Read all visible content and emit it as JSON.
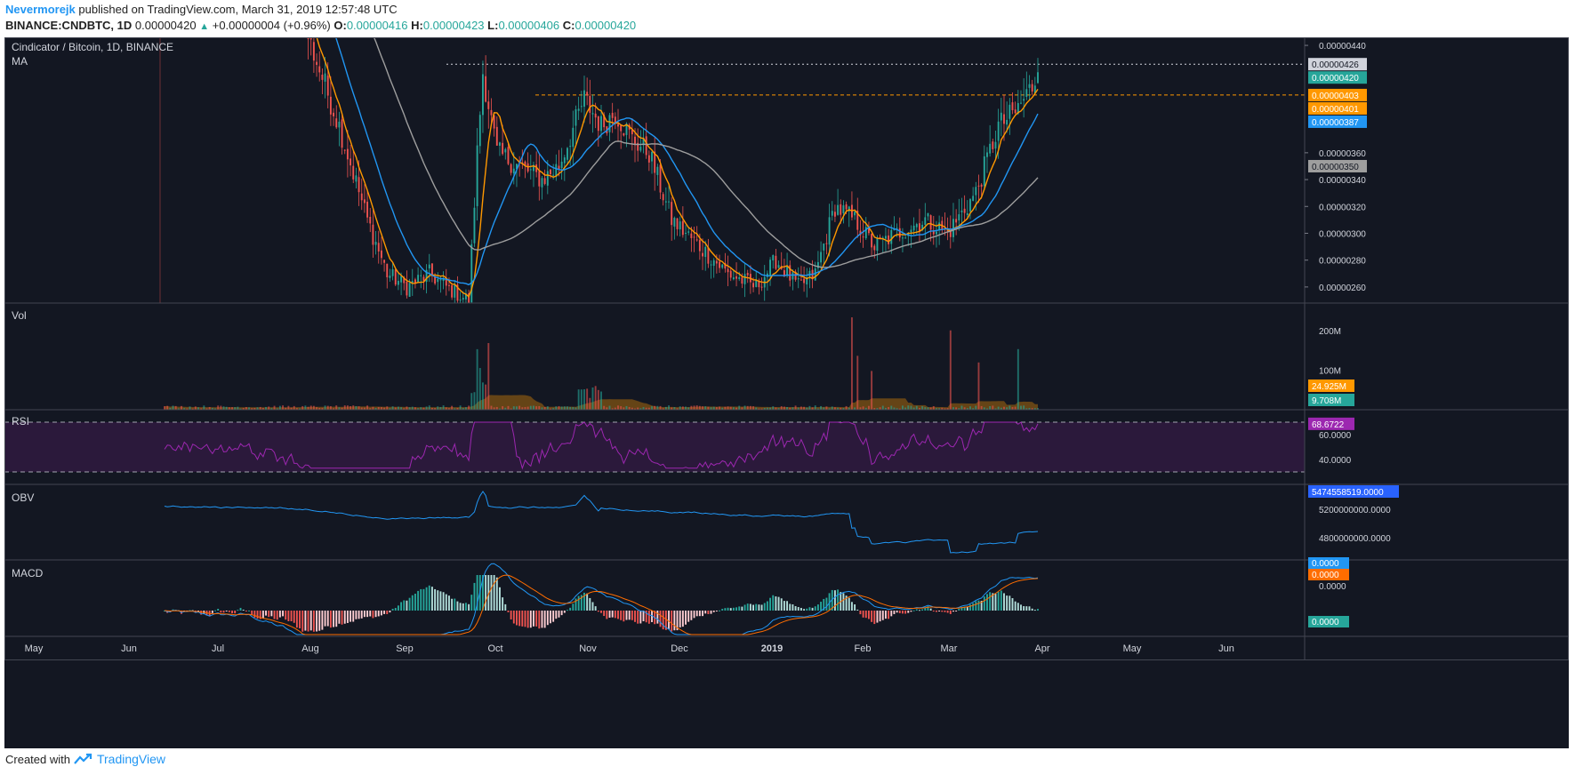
{
  "header": {
    "author": "Nevermorejk",
    "published": "published on TradingView.com, March 31, 2019 12:57:48 UTC",
    "symbol": "BINANCE:CNDBTC, 1D",
    "last": "0.00000420",
    "change": "+0.00000004 (+0.96%)",
    "o_label": "O:",
    "o": "0.00000416",
    "h_label": "H:",
    "h": "0.00000423",
    "l_label": "L:",
    "l": "0.00000406",
    "c_label": "C:",
    "c": "0.00000420"
  },
  "footer": {
    "created_with": "Created with",
    "brand": "TradingView"
  },
  "chart_data": {
    "type": "candlestick",
    "title": "Cindicator / Bitcoin, 1D, BINANCE",
    "indicator_label": "MA",
    "colors": {
      "bg": "#131722",
      "up": "#26a69a",
      "down": "#ef5350",
      "ma_fast": "#ff9800",
      "ma_mid": "#2196f3",
      "ma_slow": "#9e9e9e",
      "rsi": "#9c27b0",
      "obv": "#2196f3",
      "macd": "#2196f3",
      "signal": "#ff6d00"
    },
    "x_ticks": [
      "May",
      "Jun",
      "Jul",
      "Aug",
      "Sep",
      "Oct",
      "Nov",
      "Dec",
      "2019",
      "Feb",
      "Mar",
      "Apr",
      "May",
      "Jun"
    ],
    "price_axis": {
      "ticks": [
        "0.00000440",
        "0.00000360",
        "0.00000340",
        "0.00000320",
        "0.00000300",
        "0.00000280",
        "0.00000260"
      ],
      "labels": [
        {
          "value": "0.00000426",
          "color": "#d1d4dc"
        },
        {
          "value": "0.00000420",
          "color": "#26a69a"
        },
        {
          "value": "0.00000403",
          "color": "#ff9800"
        },
        {
          "value": "0.00000401",
          "color": "#ff9800"
        },
        {
          "value": "0.00000387",
          "color": "#2196f3"
        },
        {
          "value": "0.00000350",
          "color": "#9e9e9e"
        }
      ],
      "ylim": [
        2.48e-06,
        4.46e-06
      ]
    },
    "hlines": [
      {
        "value": 4.26e-06,
        "style": "dotted",
        "color": "#d1d4dc"
      },
      {
        "value": 4.03e-06,
        "style": "dashed",
        "color": "#ff9800"
      }
    ],
    "price_anchors": [
      [
        0,
        5.6e-06
      ],
      [
        28,
        5.5e-06
      ],
      [
        42,
        5.1e-06
      ],
      [
        52,
        4.4e-06
      ],
      [
        62,
        3.8e-06
      ],
      [
        72,
        3.1e-06
      ],
      [
        79,
        2.7e-06
      ],
      [
        86,
        2.6e-06
      ],
      [
        94,
        2.7e-06
      ],
      [
        100,
        2.6e-06
      ],
      [
        108,
        2.5e-06
      ],
      [
        111,
        3.6e-06
      ],
      [
        113,
        4.2e-06
      ],
      [
        118,
        3.6e-06
      ],
      [
        126,
        3.5e-06
      ],
      [
        134,
        3.4e-06
      ],
      [
        140,
        3.5e-06
      ],
      [
        149,
        4e-06
      ],
      [
        155,
        3.8e-06
      ],
      [
        160,
        3.9e-06
      ],
      [
        166,
        3.7e-06
      ],
      [
        172,
        3.6e-06
      ],
      [
        180,
        3.1e-06
      ],
      [
        190,
        2.9e-06
      ],
      [
        200,
        2.7e-06
      ],
      [
        210,
        2.6e-06
      ],
      [
        217,
        2.8e-06
      ],
      [
        225,
        2.6e-06
      ],
      [
        231,
        2.7e-06
      ],
      [
        238,
        3.2e-06
      ],
      [
        245,
        3.1e-06
      ],
      [
        252,
        2.9e-06
      ],
      [
        260,
        3e-06
      ],
      [
        270,
        3.1e-06
      ],
      [
        278,
        3e-06
      ],
      [
        288,
        3.3e-06
      ],
      [
        296,
        3.8e-06
      ],
      [
        302,
        3.9e-06
      ],
      [
        308,
        4.1e-06
      ],
      [
        310,
        4.2e-06
      ]
    ],
    "volume": {
      "label": "Vol",
      "ticks": [
        "200M",
        "100M"
      ],
      "labels": [
        {
          "value": "24.925M",
          "color": "#ff9800"
        },
        {
          "value": "9.708M",
          "color": "#26a69a"
        }
      ]
    },
    "rsi": {
      "label": "RSI",
      "ticks": [
        "60.0000",
        "40.0000"
      ],
      "last": "68.6722",
      "upper": 70,
      "lower": 30
    },
    "obv": {
      "label": "OBV",
      "ticks": [
        "5200000000.0000",
        "4800000000.0000"
      ],
      "last": "5474558519.0000"
    },
    "macd": {
      "label": "MACD",
      "ticks": [
        "0.0000"
      ],
      "labels": [
        {
          "value": "0.0000",
          "color": "#2196f3"
        },
        {
          "value": "0.0000",
          "color": "#ff6d00"
        },
        {
          "value": "0.0000",
          "color": "#26a69a"
        }
      ]
    }
  }
}
